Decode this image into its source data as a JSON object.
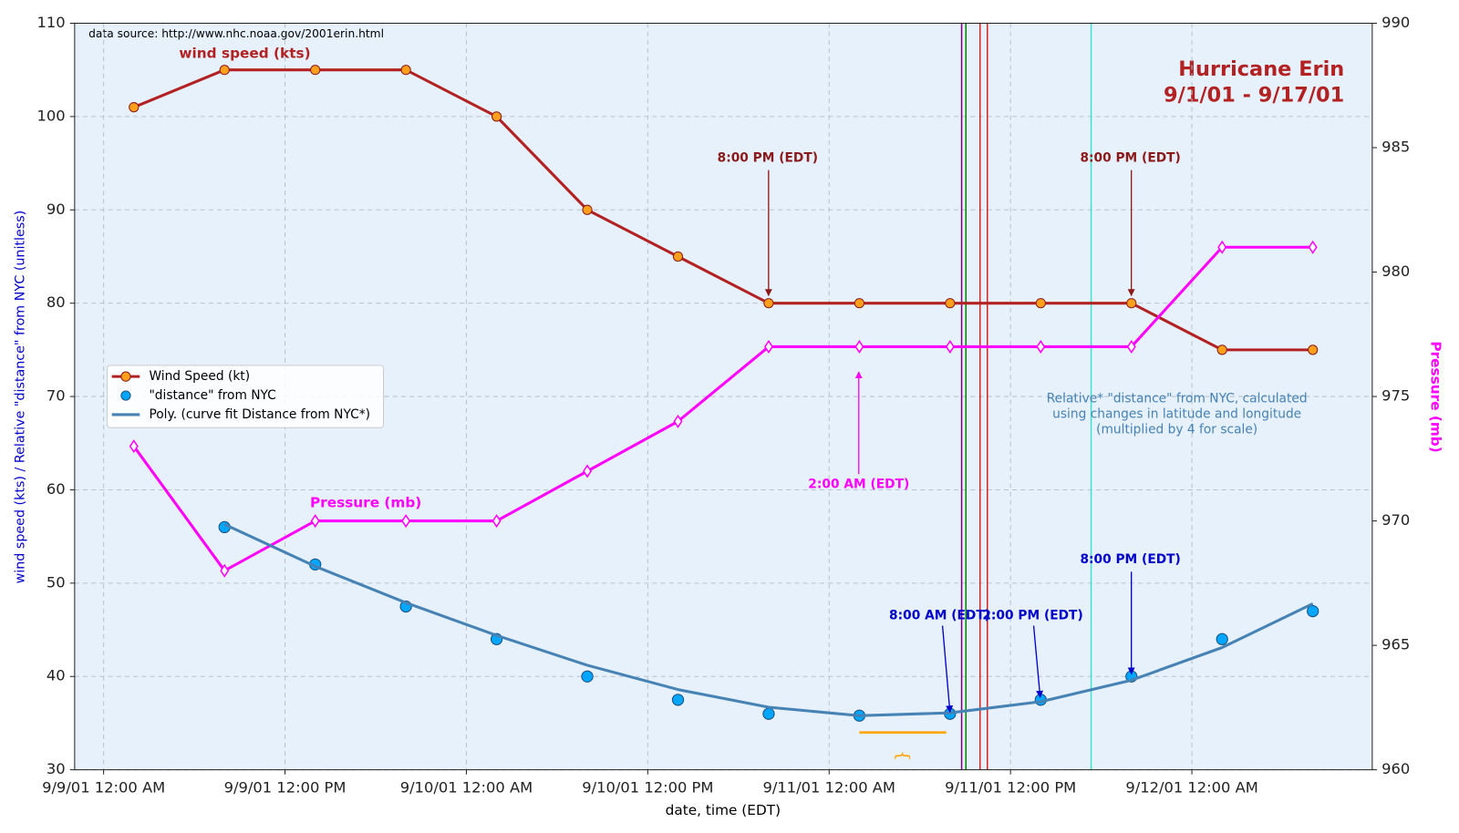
{
  "chart_data": {
    "type": "line",
    "title": "Hurricane Erin",
    "subtitle": "9/1/01 - 9/17/01",
    "source_note": "data source: http://www.nhc.noaa.gov/2001erin.html",
    "x_label": "date, time (EDT)",
    "y_label": "wind speed (kts) / Relative \"distance\" from NYC (unitless)",
    "y2_label": "Pressure (mb)",
    "x": [
      "2001-09-09T02:00",
      "2001-09-09T08:00",
      "2001-09-09T14:00",
      "2001-09-09T20:00",
      "2001-09-10T02:00",
      "2001-09-10T08:00",
      "2001-09-10T14:00",
      "2001-09-10T20:00",
      "2001-09-11T02:00",
      "2001-09-11T08:00",
      "2001-09-11T14:00",
      "2001-09-11T20:00",
      "2001-09-12T02:00",
      "2001-09-12T08:00"
    ],
    "xlim": [
      "2001-09-08T22:05",
      "2001-09-12T11:56"
    ],
    "xticks": [
      {
        "value": "2001-09-09T00:00",
        "label": "9/9/01 12:00 AM"
      },
      {
        "value": "2001-09-09T12:00",
        "label": "9/9/01 12:00 PM"
      },
      {
        "value": "2001-09-10T00:00",
        "label": "9/10/01 12:00 AM"
      },
      {
        "value": "2001-09-10T12:00",
        "label": "9/10/01 12:00 PM"
      },
      {
        "value": "2001-09-11T00:00",
        "label": "9/11/01 12:00 AM"
      },
      {
        "value": "2001-09-11T12:00",
        "label": "9/11/01 12:00 PM"
      },
      {
        "value": "2001-09-12T00:00",
        "label": "9/12/01 12:00 AM"
      }
    ],
    "ylim": [
      30,
      110
    ],
    "yticks": [
      30,
      40,
      50,
      60,
      70,
      80,
      90,
      100,
      110
    ],
    "y2lim": [
      960,
      990
    ],
    "y2ticks": [
      960,
      965,
      970,
      975,
      980,
      985,
      990
    ],
    "grid": true,
    "series": [
      {
        "name": "Wind Speed (kt)",
        "style": "line",
        "marker": "circle",
        "color": "#b22222",
        "marker_color": "#ff9f1c",
        "values": [
          101,
          105,
          105,
          105,
          100,
          90,
          85,
          80,
          80,
          80,
          80,
          80,
          75,
          75
        ]
      },
      {
        "style": "line",
        "marker": "diamond",
        "color": "#ff00ff",
        "marker_color": "#ffffff",
        "axis": "y2",
        "values": [
          973,
          968,
          970,
          970,
          970,
          972,
          974,
          977,
          977,
          977,
          977,
          977,
          981,
          981
        ]
      },
      {
        "name": "\"distance\" from NYC",
        "style": "scatter",
        "marker": "circle",
        "color": "#1f4e79",
        "marker_color": "#00a6ff",
        "values": [
          null,
          56,
          52,
          47.5,
          44,
          40,
          37.5,
          36,
          35.8,
          36,
          37.5,
          40,
          44,
          47
        ]
      },
      {
        "name": "Poly. (curve fit Distance from NYC*)",
        "style": "line",
        "color": "#4682b4",
        "values": [
          null,
          56.3,
          51.8,
          47.9,
          44.4,
          41.2,
          38.6,
          36.7,
          35.8,
          36.1,
          37.3,
          39.6,
          43.1,
          47.8
        ]
      }
    ],
    "series_labels": [
      {
        "text": "wind speed (kts)",
        "color": "#b22222"
      },
      {
        "text": "Pressure (mb)",
        "color": "#ff00ff"
      }
    ],
    "annotations": [
      {
        "text": "8:00 PM (EDT)",
        "color": "#8b1a1a"
      },
      {
        "text": "8:00 PM (EDT)",
        "color": "#8b1a1a"
      },
      {
        "text": "2:00 AM (EDT)",
        "color": "#ff00ff"
      },
      {
        "text": "8:00 AM (EDT)",
        "color": "#0000cc"
      },
      {
        "text": "2:00 PM (EDT)",
        "color": "#0000cc"
      },
      {
        "text": "8:00 PM (EDT)",
        "color": "#0000cc"
      }
    ],
    "note": [
      "Relative* \"distance\" from NYC, calculated",
      "using changes in latitude and longitude",
      "(multiplied by 4 for scale)"
    ],
    "note_color": "#4682b4",
    "event_lines": [
      {
        "x": "2001-09-11T08:46",
        "color": "#800080"
      },
      {
        "x": "2001-09-11T09:03",
        "color": "#008000"
      },
      {
        "x": "2001-09-11T09:59",
        "color": "#d62728"
      },
      {
        "x": "2001-09-11T10:28",
        "color": "#d62728"
      },
      {
        "x": "2001-09-11T17:20",
        "color": "#40e0d0"
      }
    ],
    "span": {
      "x": [
        "2001-09-11T02:00",
        "2001-09-11T07:45"
      ],
      "y": 34,
      "color": "#ffa500",
      "brace": "}"
    },
    "legend": "center left"
  }
}
